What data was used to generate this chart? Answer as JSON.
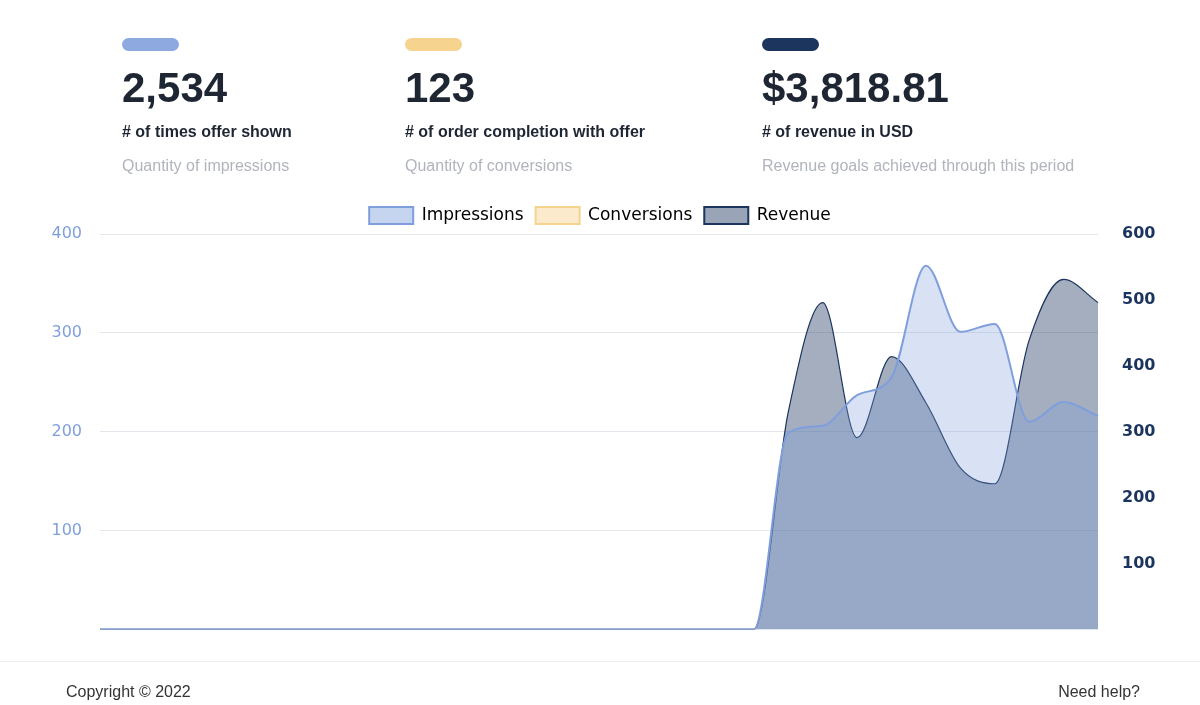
{
  "chart_data": [
    {
      "type": "other",
      "title": "2,534",
      "subtitle": "# of times offer shown",
      "annotations": [
        "Quantity of impressions"
      ],
      "color": "#8ea8e0"
    },
    {
      "type": "other",
      "title": "123",
      "subtitle": "# of order completion with offer",
      "annotations": [
        "Quantity of conversions"
      ],
      "color": "#f6d38e"
    },
    {
      "type": "other",
      "title": "$3,818.81",
      "subtitle": "# of revenue in USD",
      "annotations": [
        "Revenue goals achieved through this period"
      ],
      "color": "#1c355e"
    },
    {
      "type": "area",
      "categories": [
        null,
        null,
        null,
        null,
        null,
        null,
        null,
        null,
        null,
        null,
        null,
        null,
        null,
        null,
        null,
        null,
        null,
        null,
        null,
        null,
        null,
        null,
        null,
        null,
        null,
        null,
        null,
        null,
        null,
        null
      ],
      "series": [
        {
          "name": "Impressions",
          "color": "#7f9fdc",
          "values": [
            0,
            0,
            0,
            0,
            0,
            0,
            0,
            0,
            0,
            0,
            0,
            0,
            0,
            0,
            0,
            0,
            0,
            0,
            0,
            0,
            199,
            206,
            237,
            255,
            368,
            301,
            309,
            210,
            230,
            216
          ]
        },
        {
          "name": "Conversions",
          "color": "#f6d38e",
          "values": [
            null,
            null,
            null,
            null,
            null,
            null,
            null,
            null,
            null,
            null,
            null,
            null,
            null,
            null,
            null,
            null,
            null,
            null,
            null,
            null,
            null,
            null,
            null,
            null,
            null,
            null,
            null,
            null,
            null,
            null
          ]
        },
        {
          "name": "Revenue",
          "color": "#1c355e",
          "axis": "y2",
          "values": [
            0,
            0,
            0,
            0,
            0,
            0,
            0,
            0,
            0,
            0,
            0,
            0,
            0,
            0,
            0,
            0,
            0,
            0,
            0,
            0,
            330,
            496,
            291,
            414,
            344,
            245,
            221,
            439,
            531,
            496
          ]
        }
      ],
      "ylim": [
        0,
        400
      ],
      "yticks": [
        100,
        200,
        300,
        400
      ],
      "y2lim": [
        0,
        600
      ],
      "y2ticks": [
        100,
        200,
        300,
        400,
        500,
        600
      ],
      "grid": "y",
      "legend": "top",
      "tick_labels": "y",
      "marker": "none",
      "annotations": [
        "Copyright © 2022",
        "Need help?"
      ]
    }
  ]
}
